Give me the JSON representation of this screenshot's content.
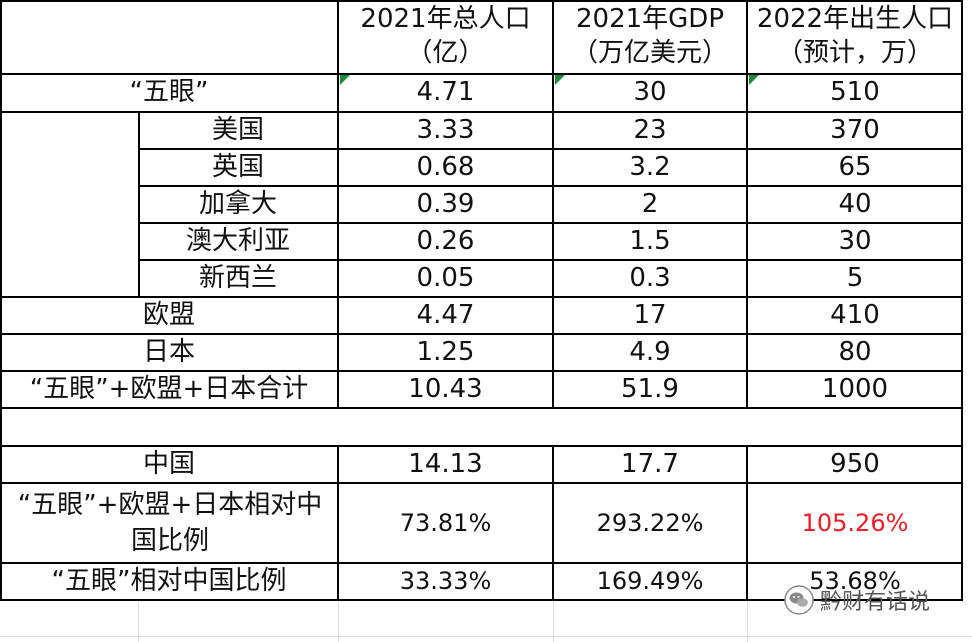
{
  "headers": {
    "population": "2021年总人口（亿）",
    "gdp": "2021年GDP（万亿美元）",
    "births": "2022年出生人口（预计，万）"
  },
  "rows": [
    {
      "label": "“五眼”",
      "population": "4.71",
      "gdp": "30",
      "births": "510"
    },
    {
      "label": "美国",
      "population": "3.33",
      "gdp": "23",
      "births": "370"
    },
    {
      "label": "英国",
      "population": "0.68",
      "gdp": "3.2",
      "births": "65"
    },
    {
      "label": "加拿大",
      "population": "0.39",
      "gdp": "2",
      "births": "40"
    },
    {
      "label": "澳大利亚",
      "population": "0.26",
      "gdp": "1.5",
      "births": "30"
    },
    {
      "label": "新西兰",
      "population": "0.05",
      "gdp": "0.3",
      "births": "5"
    },
    {
      "label": "欧盟",
      "population": "4.47",
      "gdp": "17",
      "births": "410"
    },
    {
      "label": "日本",
      "population": "1.25",
      "gdp": "4.9",
      "births": "80"
    },
    {
      "label": "“五眼”+欧盟+日本合计",
      "population": "10.43",
      "gdp": "51.9",
      "births": "1000"
    },
    {
      "label": "中国",
      "population": "14.13",
      "gdp": "17.7",
      "births": "950"
    },
    {
      "label": "“五眼”+欧盟+日本相对中国比例",
      "population": "73.81%",
      "gdp": "293.22%",
      "births": "105.26%"
    },
    {
      "label": "“五眼”相对中国比例",
      "population": "33.33%",
      "gdp": "169.49%",
      "births": "53.68%"
    }
  ],
  "highlight_color": "#ee1c25",
  "watermark": {
    "text": "黔财有话说",
    "icon": "wechat-logo-icon"
  }
}
